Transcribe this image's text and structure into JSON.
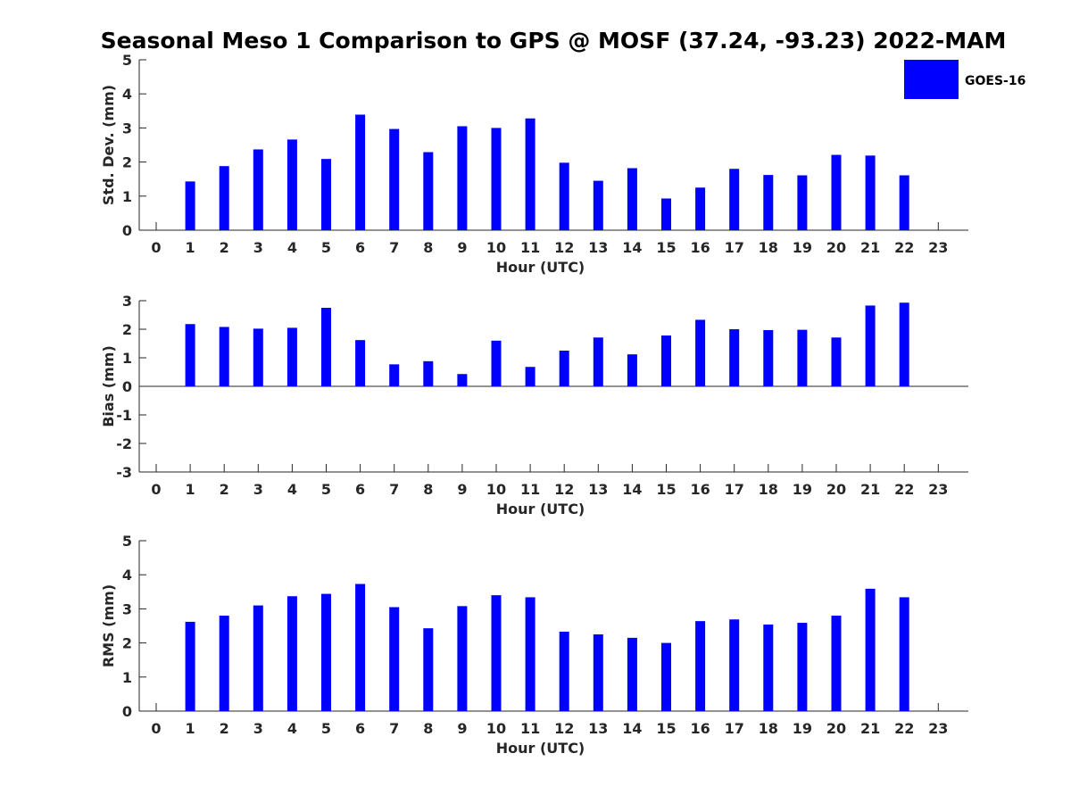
{
  "title": "Seasonal Meso 1 Comparison to GPS @ MOSF (37.24, -93.23) 2022-MAM",
  "legend": {
    "label": "GOES-16",
    "color": "#0000ff"
  },
  "chart_data": [
    {
      "type": "bar",
      "name": "std-dev",
      "x": [
        0,
        1,
        2,
        3,
        4,
        5,
        6,
        7,
        8,
        9,
        10,
        11,
        12,
        13,
        14,
        15,
        16,
        17,
        18,
        19,
        20,
        21,
        22,
        23
      ],
      "values": [
        null,
        1.43,
        1.88,
        2.37,
        2.66,
        2.09,
        3.39,
        2.97,
        2.29,
        3.05,
        3.0,
        3.28,
        1.98,
        1.45,
        1.82,
        0.93,
        1.25,
        1.8,
        1.62,
        1.61,
        2.21,
        2.19,
        1.61,
        null
      ],
      "ylabel": "Std. Dev. (mm)",
      "xlabel": "Hour (UTC)",
      "ylim": [
        0,
        5
      ],
      "yticks": [
        0,
        1,
        2,
        3,
        4,
        5
      ],
      "series_name": "GOES-16",
      "color": "#0000ff"
    },
    {
      "type": "bar",
      "name": "bias",
      "x": [
        0,
        1,
        2,
        3,
        4,
        5,
        6,
        7,
        8,
        9,
        10,
        11,
        12,
        13,
        14,
        15,
        16,
        17,
        18,
        19,
        20,
        21,
        22,
        23
      ],
      "values": [
        null,
        2.18,
        2.08,
        2.02,
        2.05,
        2.75,
        1.62,
        0.77,
        0.88,
        0.43,
        1.6,
        0.68,
        1.25,
        1.71,
        1.12,
        1.78,
        2.33,
        2.0,
        1.97,
        1.98,
        1.71,
        2.83,
        2.93,
        null
      ],
      "ylabel": "Bias (mm)",
      "xlabel": "Hour (UTC)",
      "ylim": [
        -3,
        3
      ],
      "yticks": [
        -3,
        -2,
        -1,
        0,
        1,
        2,
        3
      ],
      "zero_line": true,
      "series_name": "GOES-16",
      "color": "#0000ff"
    },
    {
      "type": "bar",
      "name": "rms",
      "x": [
        0,
        1,
        2,
        3,
        4,
        5,
        6,
        7,
        8,
        9,
        10,
        11,
        12,
        13,
        14,
        15,
        16,
        17,
        18,
        19,
        20,
        21,
        22,
        23
      ],
      "values": [
        null,
        2.62,
        2.8,
        3.1,
        3.37,
        3.44,
        3.73,
        3.05,
        2.43,
        3.08,
        3.4,
        3.34,
        2.33,
        2.25,
        2.15,
        2.0,
        2.64,
        2.69,
        2.54,
        2.59,
        2.8,
        3.59,
        3.34,
        null
      ],
      "ylabel": "RMS (mm)",
      "xlabel": "Hour (UTC)",
      "ylim": [
        0,
        5
      ],
      "yticks": [
        0,
        1,
        2,
        3,
        4,
        5
      ],
      "series_name": "GOES-16",
      "color": "#0000ff"
    }
  ]
}
